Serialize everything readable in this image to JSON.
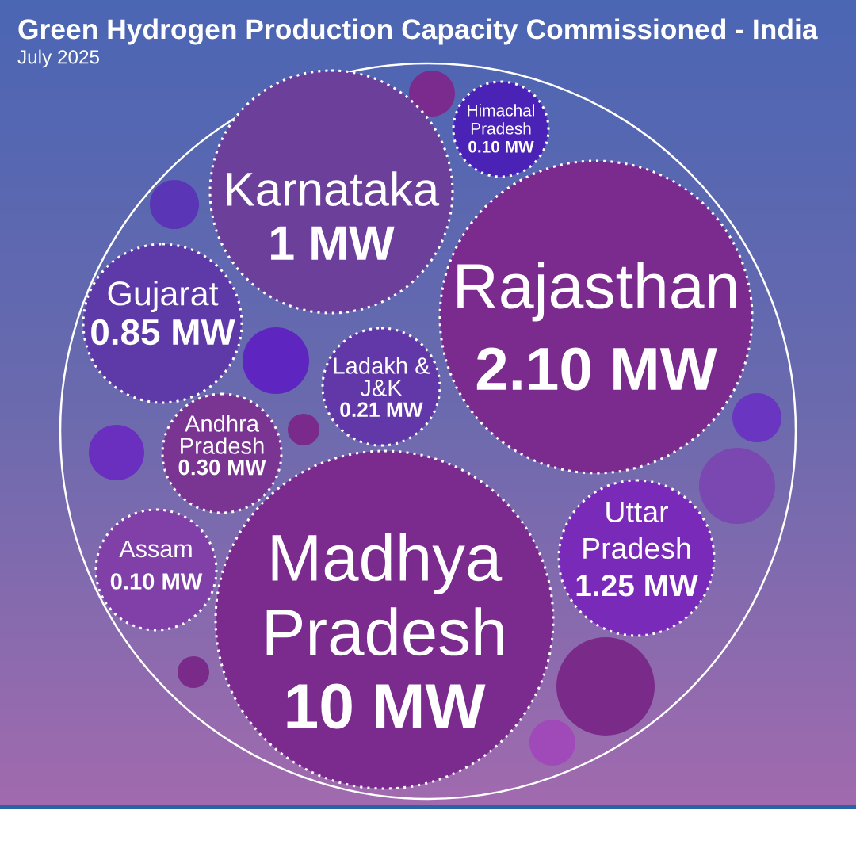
{
  "chart_data": {
    "type": "other",
    "title": "Green Hydrogen Production Capacity Commissioned - India",
    "subtitle": "July 2025",
    "categories": [
      "Himachal Pradesh",
      "Karnataka",
      "Rajasthan",
      "Gujarat",
      "Ladakh & J&K",
      "Andhra Pradesh",
      "Uttar Pradesh",
      "Assam",
      "Madhya Pradesh"
    ],
    "values": [
      0.1,
      1,
      2.1,
      0.85,
      0.21,
      0.3,
      1.25,
      0.1,
      10
    ],
    "value_labels": [
      "0.10 MW",
      "1 MW",
      "2.10 MW",
      "0.85 MW",
      "0.21 MW",
      "0.30 MW",
      "1.25 MW",
      "0.10 MW",
      "10 MW"
    ],
    "colors": [
      "#4a22b5",
      "#6b3f9a",
      "#7b2a8e",
      "#5d3aa8",
      "#6238a8",
      "#7a3592",
      "#7a2ab8",
      "#8040a8",
      "#7b2a8e"
    ]
  }
}
